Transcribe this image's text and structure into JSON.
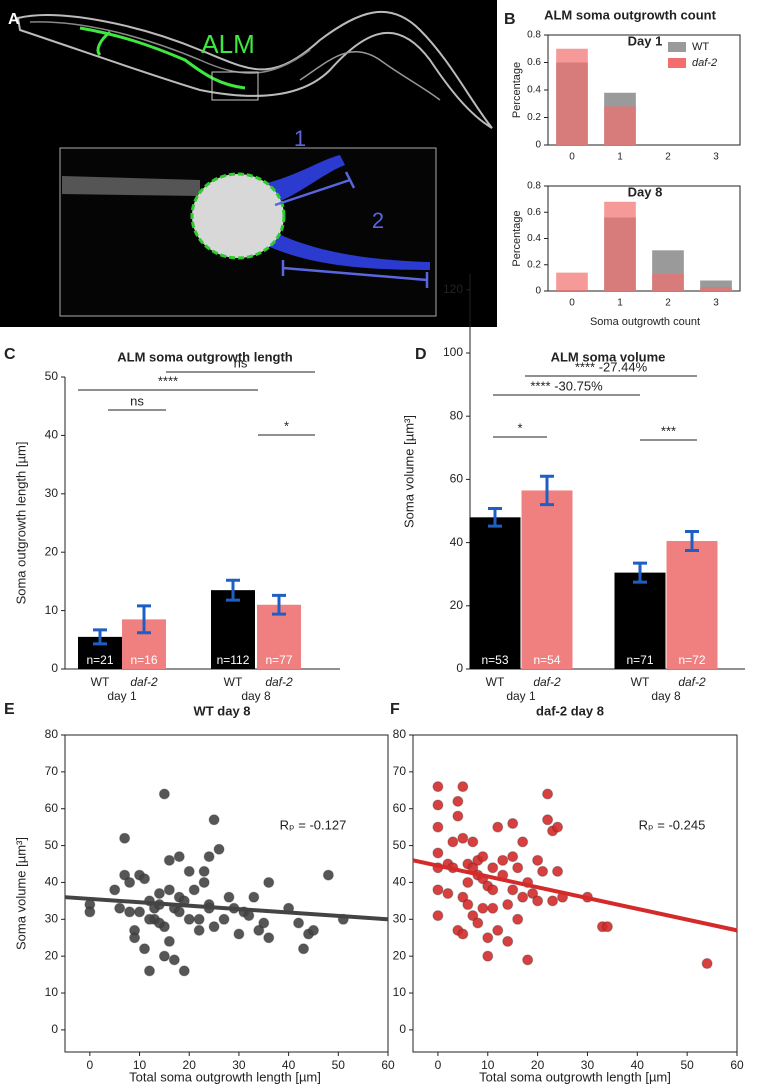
{
  "panel_a": {
    "panel": "A",
    "cell": "ALM",
    "branch_1": "1",
    "branch_2": "2"
  },
  "chart_data": [
    {
      "type": "bar",
      "panel": "B",
      "title": "ALM soma outgrowth count",
      "subtitle": "Day 1",
      "ylabel": "Percentage",
      "categories": [
        "0",
        "1",
        "2",
        "3"
      ],
      "series": [
        {
          "name": "WT",
          "color": "#9a9a9a",
          "values": [
            0.6,
            0.38,
            0,
            0
          ]
        },
        {
          "name": "daf-2",
          "color": "#f26d6d",
          "values": [
            0.7,
            0.28,
            0,
            0
          ]
        }
      ],
      "ylim": [
        0,
        0.8
      ],
      "yticks": [
        0,
        0.2,
        0.4,
        0.6,
        0.8
      ],
      "legend": "upper right"
    },
    {
      "type": "bar",
      "subtitle": "Day 8",
      "ylabel": "Percentage",
      "xlabel": "Soma outgrowth count",
      "categories": [
        "0",
        "1",
        "2",
        "3"
      ],
      "series": [
        {
          "color": "#9a9a9a",
          "values": [
            0,
            0.56,
            0.31,
            0.08
          ]
        },
        {
          "color": "#f26d6d",
          "values": [
            0.14,
            0.68,
            0.13,
            0.03
          ]
        }
      ],
      "ylim": [
        0,
        0.8
      ],
      "yticks": [
        0,
        0.2,
        0.4,
        0.6,
        0.8
      ]
    },
    {
      "type": "bar",
      "panel": "C",
      "title": "ALM soma outgrowth length",
      "ylabel": "Soma outgrowth length [µm]",
      "categories": [
        "WT",
        "daf-2",
        "WT",
        "daf-2"
      ],
      "groups": [
        "day 1",
        "day 8"
      ],
      "values": [
        5.5,
        8.5,
        13.5,
        11
      ],
      "errors": [
        1.2,
        2.3,
        1.7,
        1.6
      ],
      "colors": [
        "#000000",
        "#f08080",
        "#000000",
        "#f08080"
      ],
      "n_labels": [
        "n=21",
        "n=16",
        "n=112",
        "n=77"
      ],
      "annotations": [
        "ns",
        "****",
        "ns",
        "*"
      ],
      "ylim": [
        0,
        50
      ],
      "yticks": [
        0,
        10,
        20,
        30,
        40,
        50
      ]
    },
    {
      "type": "bar",
      "panel": "D",
      "title": "ALM soma volume",
      "ylabel": "Soma volume [µm³]",
      "categories": [
        "WT",
        "daf-2",
        "WT",
        "daf-2"
      ],
      "groups": [
        "day 1",
        "day 8"
      ],
      "values": [
        48,
        56.5,
        30.5,
        40.5
      ],
      "errors": [
        2.8,
        4.5,
        3,
        3
      ],
      "colors": [
        "#000000",
        "#f08080",
        "#000000",
        "#f08080"
      ],
      "n_labels": [
        "n=53",
        "n=54",
        "n=71",
        "n=72"
      ],
      "annotations": [
        "**** -27.44%",
        "**** -30.75%",
        "*",
        "***"
      ],
      "ylim": [
        0,
        125
      ],
      "yticks": [
        0,
        20,
        40,
        60,
        80,
        100,
        120
      ]
    },
    {
      "type": "scatter",
      "panel": "E",
      "title": "WT day 8",
      "xlabel": "Total soma outgrowth length [µm]",
      "ylabel": "Soma volume [µm³]",
      "annotation": "Rₚ = -0.127",
      "color": "#444444",
      "x": [
        0,
        0,
        5,
        6,
        7,
        7,
        8,
        9,
        9,
        10,
        10,
        11,
        11,
        12,
        12,
        13,
        13,
        14,
        14,
        15,
        15,
        15,
        16,
        16,
        16,
        17,
        17,
        18,
        18,
        18,
        19,
        19,
        20,
        21,
        22,
        22,
        23,
        23,
        24,
        24,
        25,
        25,
        26,
        27,
        28,
        29,
        30,
        31,
        32,
        33,
        34,
        35,
        36,
        36,
        40,
        42,
        43,
        44,
        45,
        48,
        51,
        24,
        14,
        12,
        8,
        20
      ],
      "values": [
        34,
        32,
        38,
        33,
        42,
        52,
        32,
        27,
        25,
        42,
        32,
        41,
        22,
        35,
        16,
        33,
        30,
        37,
        34,
        28,
        20,
        64,
        46,
        38,
        24,
        19,
        33,
        32,
        47,
        36,
        16,
        35,
        30,
        38,
        30,
        27,
        40,
        43,
        34,
        47,
        57,
        28,
        49,
        30,
        36,
        33,
        26,
        32,
        31,
        36,
        27,
        29,
        40,
        25,
        33,
        29,
        22,
        26,
        27,
        42,
        30,
        33,
        29,
        30,
        40,
        43
      ],
      "fit": {
        "x": [
          -5,
          60
        ],
        "values": [
          36,
          30
        ]
      },
      "xlim": [
        -5,
        60
      ],
      "ylim": [
        -6,
        80
      ],
      "xticks": [
        0,
        10,
        20,
        30,
        40,
        50,
        60
      ],
      "yticks": [
        0,
        10,
        20,
        30,
        40,
        50,
        60,
        70,
        80
      ]
    },
    {
      "type": "scatter",
      "panel": "F",
      "title": "daf-2 day 8",
      "xlabel": "Total soma outgrowth length [µm]",
      "annotation": "Rₚ = -0.245",
      "color": "#d42a2a",
      "x": [
        0,
        0,
        0,
        0,
        0,
        0,
        0,
        2,
        2,
        3,
        4,
        4,
        5,
        5,
        5,
        5,
        6,
        6,
        6,
        7,
        7,
        7,
        8,
        8,
        8,
        9,
        9,
        9,
        10,
        10,
        10,
        11,
        11,
        12,
        12,
        13,
        13,
        14,
        14,
        15,
        15,
        15,
        16,
        16,
        17,
        17,
        18,
        18,
        19,
        20,
        20,
        21,
        22,
        22,
        23,
        23,
        24,
        24,
        25,
        30,
        33,
        34,
        54,
        4,
        11,
        3
      ],
      "values": [
        66,
        61,
        55,
        48,
        44,
        38,
        31,
        45,
        37,
        44,
        62,
        27,
        66,
        52,
        26,
        36,
        45,
        40,
        34,
        51,
        44,
        31,
        46,
        42,
        29,
        47,
        41,
        33,
        39,
        25,
        20,
        44,
        38,
        55,
        27,
        46,
        42,
        34,
        24,
        56,
        38,
        47,
        44,
        30,
        36,
        51,
        19,
        40,
        37,
        35,
        46,
        43,
        64,
        57,
        54,
        35,
        55,
        43,
        36,
        36,
        28,
        28,
        18,
        58,
        33,
        51
      ],
      "fit": {
        "x": [
          -5,
          60
        ],
        "values": [
          46,
          27
        ]
      },
      "xlim": [
        -5,
        60
      ],
      "ylim": [
        -6,
        80
      ],
      "xticks": [
        0,
        10,
        20,
        30,
        40,
        50,
        60
      ],
      "yticks": [
        0,
        10,
        20,
        30,
        40,
        50,
        60,
        70,
        80
      ]
    }
  ]
}
